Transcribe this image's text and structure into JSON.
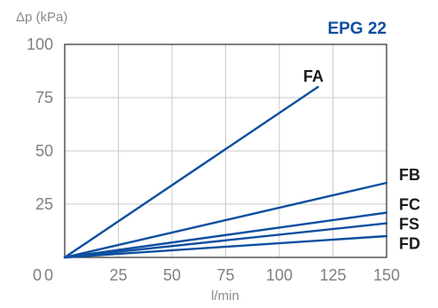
{
  "chart_data": {
    "type": "line",
    "title": "EPG 22",
    "xlabel": "l/min",
    "ylabel": "Δp (kPa)",
    "xlim": [
      0,
      150
    ],
    "ylim": [
      0,
      100
    ],
    "x_ticks": [
      "0",
      "25",
      "50",
      "75",
      "100",
      "125",
      "150"
    ],
    "y_ticks": [
      "0",
      "25",
      "50",
      "75",
      "100"
    ],
    "grid": true,
    "legend": "labels at line ends (right)",
    "line_color": "#0e4fa0",
    "series": [
      {
        "name": "FA",
        "x": [
          0,
          118
        ],
        "y": [
          0,
          80
        ]
      },
      {
        "name": "FB",
        "x": [
          0,
          150
        ],
        "y": [
          0,
          35
        ]
      },
      {
        "name": "FC",
        "x": [
          0,
          150
        ],
        "y": [
          0,
          21
        ]
      },
      {
        "name": "FS",
        "x": [
          0,
          150
        ],
        "y": [
          0,
          16
        ]
      },
      {
        "name": "FD",
        "x": [
          0,
          150
        ],
        "y": [
          0,
          10
        ]
      }
    ]
  }
}
